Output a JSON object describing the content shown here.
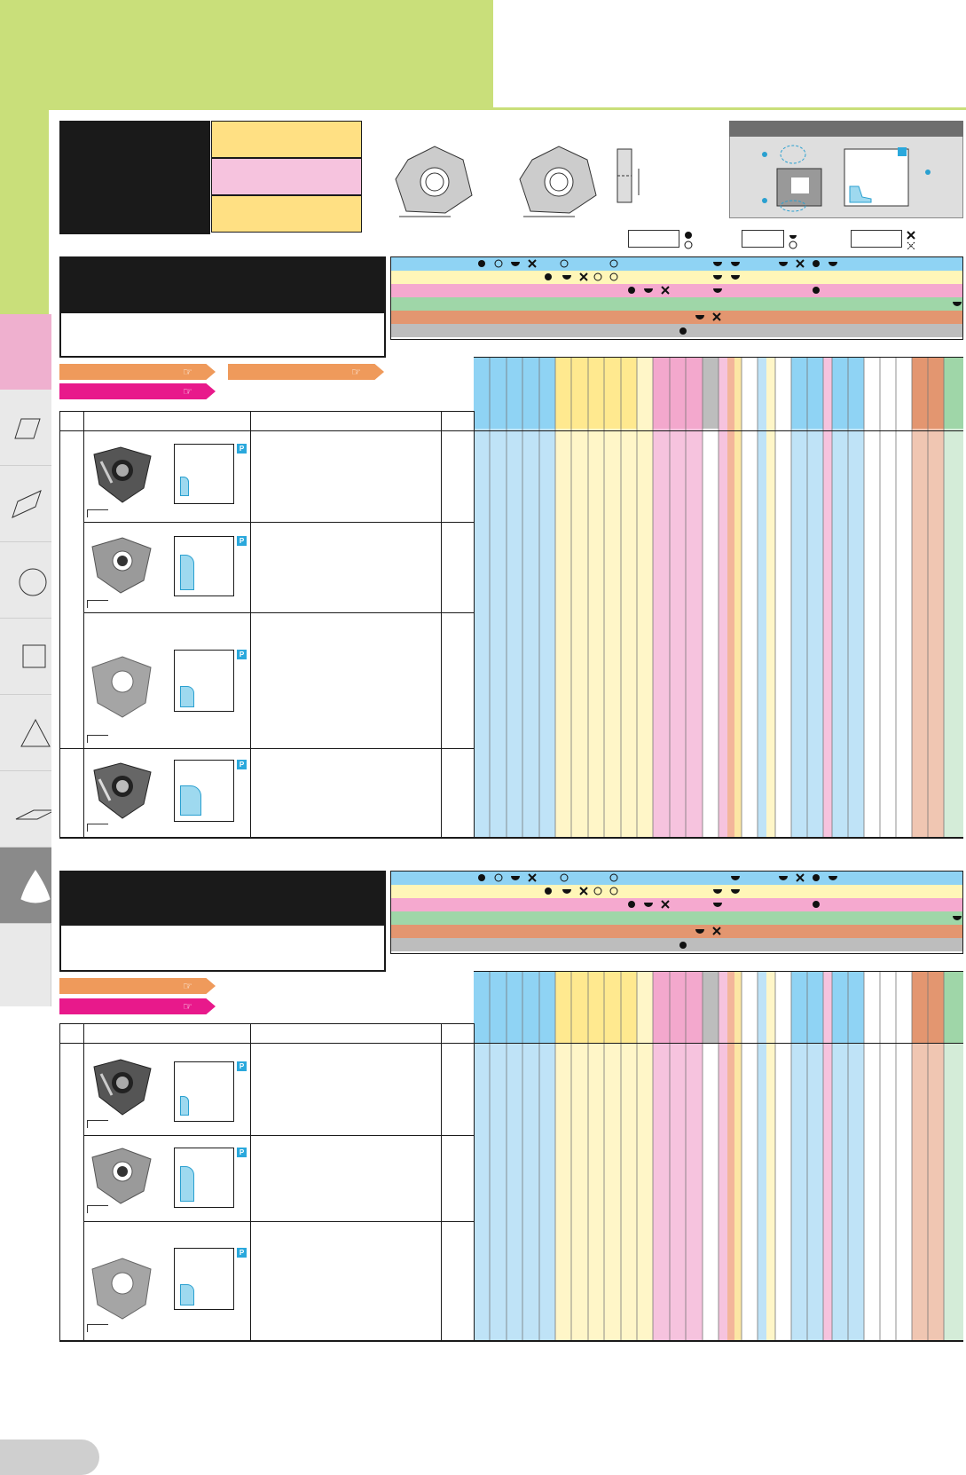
{
  "colors": {
    "green": "#c9df7a",
    "yellow": "#ffe083",
    "pink": "#f6c3de",
    "blue": "#bfe3f7",
    "orange": "#ef9a5b",
    "magenta": "#e8198b"
  },
  "icons": {
    "tab_icons": [
      "parallelogram-icon",
      "rhombus-icon",
      "circle-icon",
      "square-icon",
      "triangle-icon",
      "flat-rhombus-icon",
      "trigon-icon"
    ],
    "tag_icon": "pointing-hand-icon",
    "badge_text": "P",
    "symbols": [
      "filled-circle-icon",
      "open-circle-icon",
      "half-circle-icon",
      "cross-icon"
    ]
  }
}
